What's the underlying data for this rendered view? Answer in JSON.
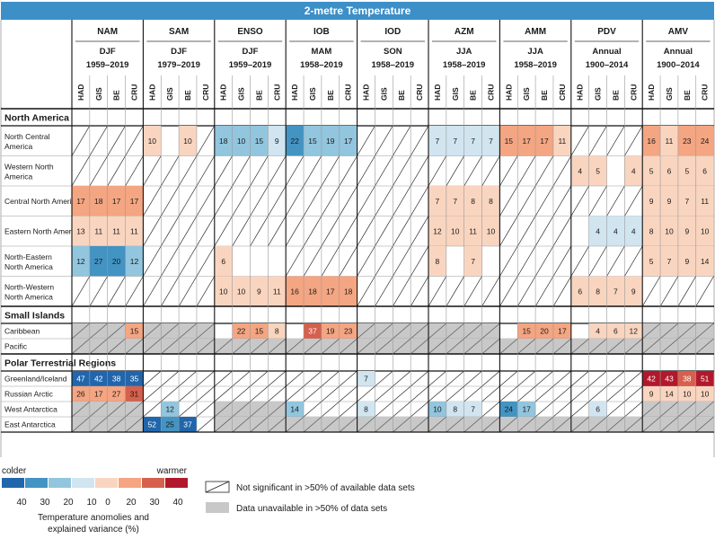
{
  "chart_data": {
    "type": "table",
    "title": "2-metre Temperature",
    "modes": [
      {
        "name": "NAM",
        "season": "DJF",
        "period": "1959–2019"
      },
      {
        "name": "SAM",
        "season": "DJF",
        "period": "1979–2019"
      },
      {
        "name": "ENSO",
        "season": "DJF",
        "period": "1959–2019"
      },
      {
        "name": "IOB",
        "season": "MAM",
        "period": "1958–2019"
      },
      {
        "name": "IOD",
        "season": "SON",
        "period": "1958–2019"
      },
      {
        "name": "AZM",
        "season": "JJA",
        "period": "1958–2019"
      },
      {
        "name": "AMM",
        "season": "JJA",
        "period": "1958–2019"
      },
      {
        "name": "PDV",
        "season": "Annual",
        "period": "1900–2014"
      },
      {
        "name": "AMV",
        "season": "Annual",
        "period": "1900–2014"
      }
    ],
    "datasets": [
      "HAD",
      "GIS",
      "BE",
      "CRU"
    ],
    "cell_codes": {
      "value": "number = explained variance (%), negative = colder",
      "blank": "significant, no value shown",
      "N": "not significant",
      "U": "data unavailable"
    },
    "sections": [
      {
        "name": "North America",
        "rows": [
          {
            "region": [
              "North Central",
              "America"
            ],
            "cells": [
              "N",
              "N",
              "N",
              "N",
              10,
              "",
              10,
              "N",
              -18,
              -10,
              -15,
              -9,
              -22,
              -15,
              -19,
              -17,
              "N",
              "N",
              "N",
              "N",
              -7,
              -7,
              -7,
              -7,
              15,
              17,
              17,
              11,
              "N",
              "N",
              "N",
              "N",
              16,
              11,
              23,
              24
            ]
          },
          {
            "region": [
              "Western North",
              "America"
            ],
            "cells": [
              "N",
              "N",
              "N",
              "N",
              "N",
              "N",
              "N",
              "N",
              "N",
              "N",
              "N",
              "N",
              "N",
              "N",
              "N",
              "N",
              "N",
              "N",
              "N",
              "N",
              "N",
              "N",
              "N",
              "N",
              "N",
              "N",
              "N",
              "N",
              4,
              5,
              "",
              4,
              5,
              6,
              5,
              6
            ]
          },
          {
            "region": [
              "Central North America"
            ],
            "cells": [
              17,
              18,
              17,
              17,
              "N",
              "N",
              "N",
              "N",
              "N",
              "N",
              "N",
              "N",
              "N",
              "N",
              "N",
              "N",
              "N",
              "N",
              "N",
              "N",
              7,
              7,
              8,
              8,
              "N",
              "N",
              "N",
              "N",
              "N",
              "N",
              "N",
              "N",
              9,
              9,
              7,
              11
            ]
          },
          {
            "region": [
              "Eastern North America"
            ],
            "cells": [
              13,
              11,
              11,
              11,
              "N",
              "N",
              "N",
              "N",
              "N",
              "N",
              "N",
              "N",
              "N",
              "N",
              "N",
              "N",
              "N",
              "N",
              "N",
              "N",
              12,
              10,
              11,
              10,
              "N",
              "N",
              "N",
              "N",
              "",
              -4,
              -4,
              -4,
              8,
              10,
              9,
              10
            ]
          },
          {
            "region": [
              "North-Eastern",
              "North America"
            ],
            "cells": [
              -12,
              -27,
              -20,
              -12,
              "N",
              "N",
              "N",
              "N",
              6,
              "",
              "",
              "",
              "N",
              "N",
              "N",
              "N",
              "N",
              "N",
              "N",
              "N",
              8,
              "",
              7,
              "",
              "N",
              "N",
              "N",
              "N",
              "N",
              "N",
              "N",
              "N",
              5,
              7,
              9,
              14
            ]
          },
          {
            "region": [
              "North-Western",
              "North America"
            ],
            "cells": [
              "N",
              "N",
              "N",
              "N",
              "N",
              "N",
              "N",
              "N",
              10,
              10,
              9,
              11,
              16,
              18,
              17,
              18,
              "N",
              "N",
              "N",
              "N",
              "N",
              "N",
              "N",
              "N",
              "N",
              "N",
              "N",
              "N",
              6,
              8,
              7,
              9,
              "N",
              "N",
              "N",
              "N"
            ]
          }
        ]
      },
      {
        "name": "Small Islands",
        "rows": [
          {
            "region": [
              "Caribbean"
            ],
            "cells": [
              "U",
              "U",
              "U",
              15,
              "U",
              "U",
              "U",
              "U",
              "",
              22,
              15,
              8,
              "",
              37,
              19,
              23,
              "U",
              "U",
              "U",
              "U",
              "U",
              "U",
              "U",
              "U",
              "",
              15,
              20,
              17,
              "",
              4,
              6,
              12,
              "U",
              "U",
              "U",
              "U"
            ]
          },
          {
            "region": [
              "Pacific"
            ],
            "cells": [
              "U",
              "U",
              "U",
              "U",
              "U",
              "U",
              "U",
              "U",
              "U",
              "U",
              "U",
              "U",
              "U",
              "U",
              "U",
              "U",
              "U",
              "U",
              "U",
              "U",
              "U",
              "U",
              "U",
              "U",
              "U",
              "U",
              "U",
              "U",
              "U",
              "U",
              "U",
              "U",
              "U",
              "U",
              "U",
              "U"
            ]
          }
        ]
      },
      {
        "name": "Polar Terrestrial Regions",
        "rows": [
          {
            "region": [
              "Greenland/Iceland"
            ],
            "cells": [
              -47,
              -42,
              -38,
              -35,
              "N",
              "N",
              "N",
              "N",
              "N",
              "N",
              "N",
              "N",
              "N",
              "N",
              "N",
              "N",
              -7,
              "N",
              "N",
              "N",
              "N",
              "N",
              "N",
              "N",
              "N",
              "N",
              "N",
              "N",
              "N",
              "N",
              "N",
              "N",
              42,
              43,
              38,
              51
            ]
          },
          {
            "region": [
              "Russian Arctic"
            ],
            "cells": [
              26,
              17,
              27,
              31,
              "N",
              "N",
              "N",
              "N",
              "N",
              "N",
              "N",
              "N",
              "N",
              "N",
              "N",
              "N",
              "N",
              "N",
              "N",
              "N",
              "N",
              "N",
              "N",
              "N",
              "N",
              "N",
              "N",
              "N",
              "N",
              "N",
              "N",
              "N",
              9,
              14,
              10,
              10
            ]
          },
          {
            "region": [
              "West Antarctica"
            ],
            "cells": [
              "U",
              "U",
              "U",
              "U",
              "N",
              -12,
              "N",
              "N",
              "U",
              "U",
              "U",
              "U",
              -14,
              "N",
              "N",
              "N",
              -8,
              "N",
              "N",
              "N",
              -10,
              -8,
              -7,
              "N",
              -24,
              -17,
              "N",
              "N",
              "N",
              -6,
              "N",
              "N",
              "U",
              "U",
              "U",
              "U"
            ]
          },
          {
            "region": [
              "East Antarctica"
            ],
            "cells": [
              "U",
              "U",
              "U",
              "U",
              -52,
              -25,
              -37,
              "N",
              "U",
              "U",
              "U",
              "U",
              "U",
              "U",
              "U",
              "U",
              "U",
              "U",
              "U",
              "U",
              "U",
              "U",
              "U",
              "U",
              "U",
              "U",
              "U",
              "U",
              "U",
              "U",
              "U",
              "U",
              "U",
              "U",
              "U",
              "U"
            ]
          }
        ]
      }
    ],
    "legend": {
      "colder_label": "colder",
      "warmer_label": "warmer",
      "ticks": [
        "40",
        "30",
        "20",
        "10",
        "0",
        "20",
        "30",
        "40"
      ],
      "caption": [
        "Temperature anomolies and",
        "explained variance (%)"
      ],
      "not_significant": "Not significant in >50% of available data sets",
      "unavailable": "Data unavailable in >50% of data sets"
    },
    "colors": {
      "title_bar": "#3d8fc8",
      "unavailable": "#c8c8c8",
      "scale": [
        "#2166ac",
        "#4393c3",
        "#92c5de",
        "#d1e5f0",
        "#f9d5c0",
        "#f4a582",
        "#d6604d",
        "#b2182b"
      ]
    }
  }
}
